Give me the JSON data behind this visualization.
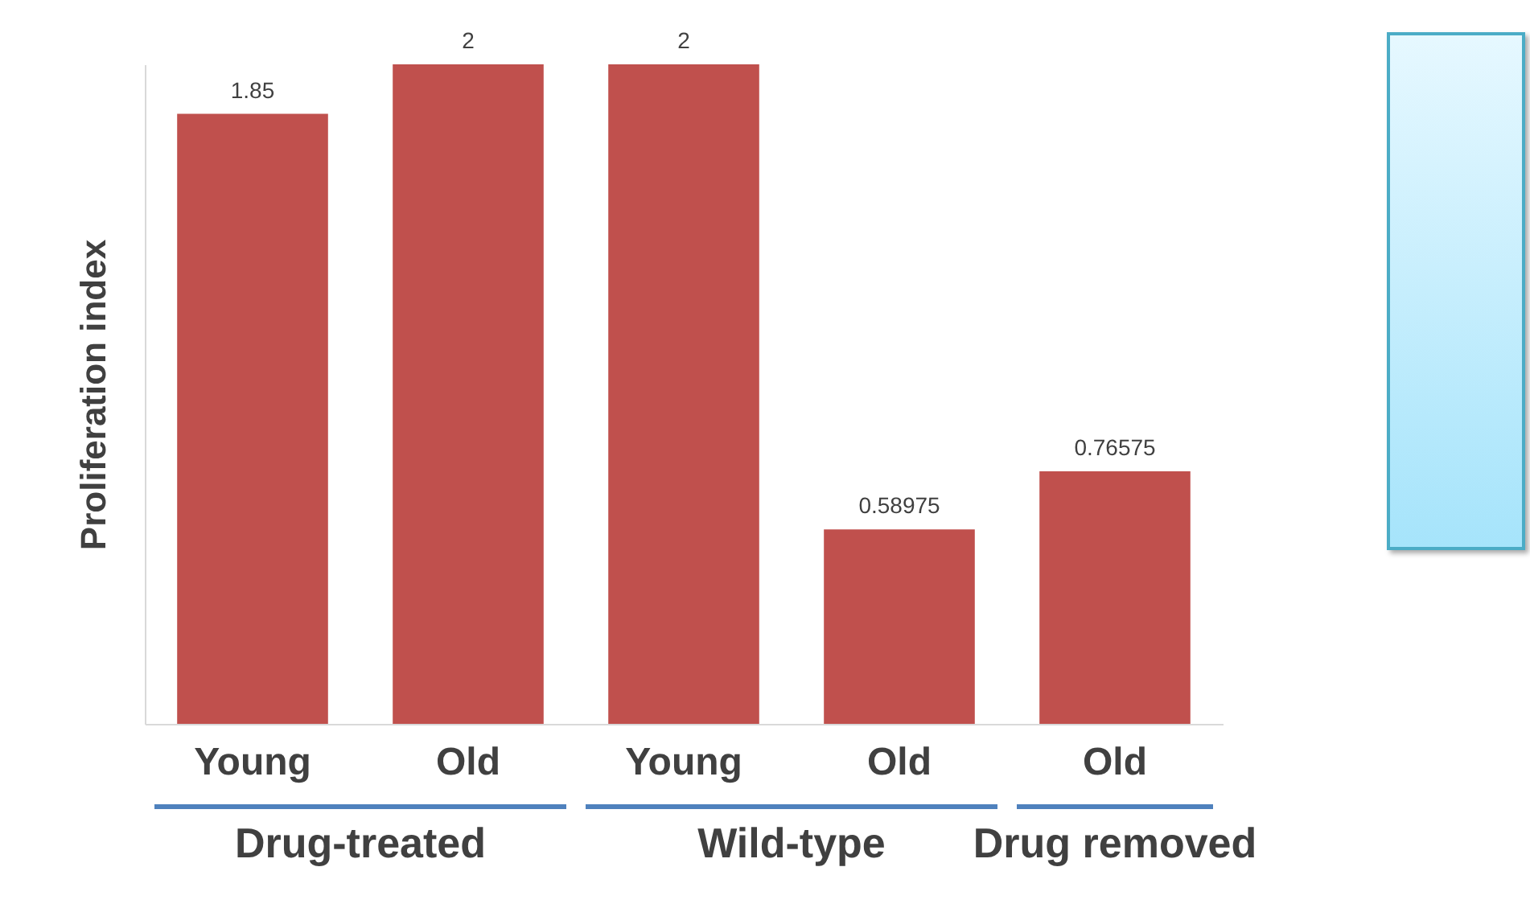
{
  "chart_data": {
    "type": "bar",
    "ylabel": "Proliferation index",
    "categories": [
      "Young",
      "Old",
      "Young",
      "Old",
      "Old"
    ],
    "values": [
      1.85,
      2,
      2,
      0.58975,
      0.76575
    ],
    "color": "#c0504d",
    "data_labels": true,
    "annotations": [
      "Drug-treated",
      "Wild-type",
      "Drug removed"
    ]
  }
}
